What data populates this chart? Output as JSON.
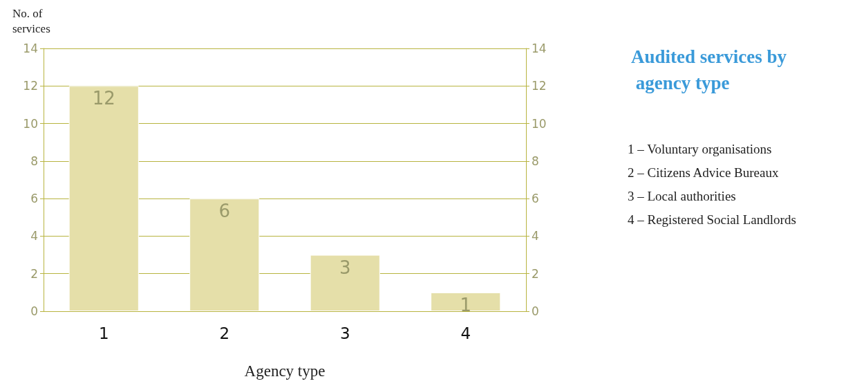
{
  "chart_data": {
    "type": "bar",
    "title": "Audited services by agency type",
    "xlabel": "Agency type",
    "ylabel": "No. of services",
    "categories": [
      "1",
      "2",
      "3",
      "4"
    ],
    "values": [
      12,
      6,
      3,
      1
    ],
    "color": "#e5dfa9",
    "data_labels": true,
    "ylim": [
      0,
      14
    ],
    "yticks": [
      0,
      2,
      4,
      6,
      8,
      10,
      12,
      14
    ],
    "y2lim": [
      0,
      14
    ],
    "y2ticks": [
      0,
      2,
      4,
      6,
      8,
      10,
      12,
      14
    ],
    "grid": "y",
    "annotations": [
      "1 – Voluntary organisations",
      "2 – Citizens Advice Bureaux",
      "3 – Local authorities",
      "4 – Registered Social Landlords"
    ]
  }
}
